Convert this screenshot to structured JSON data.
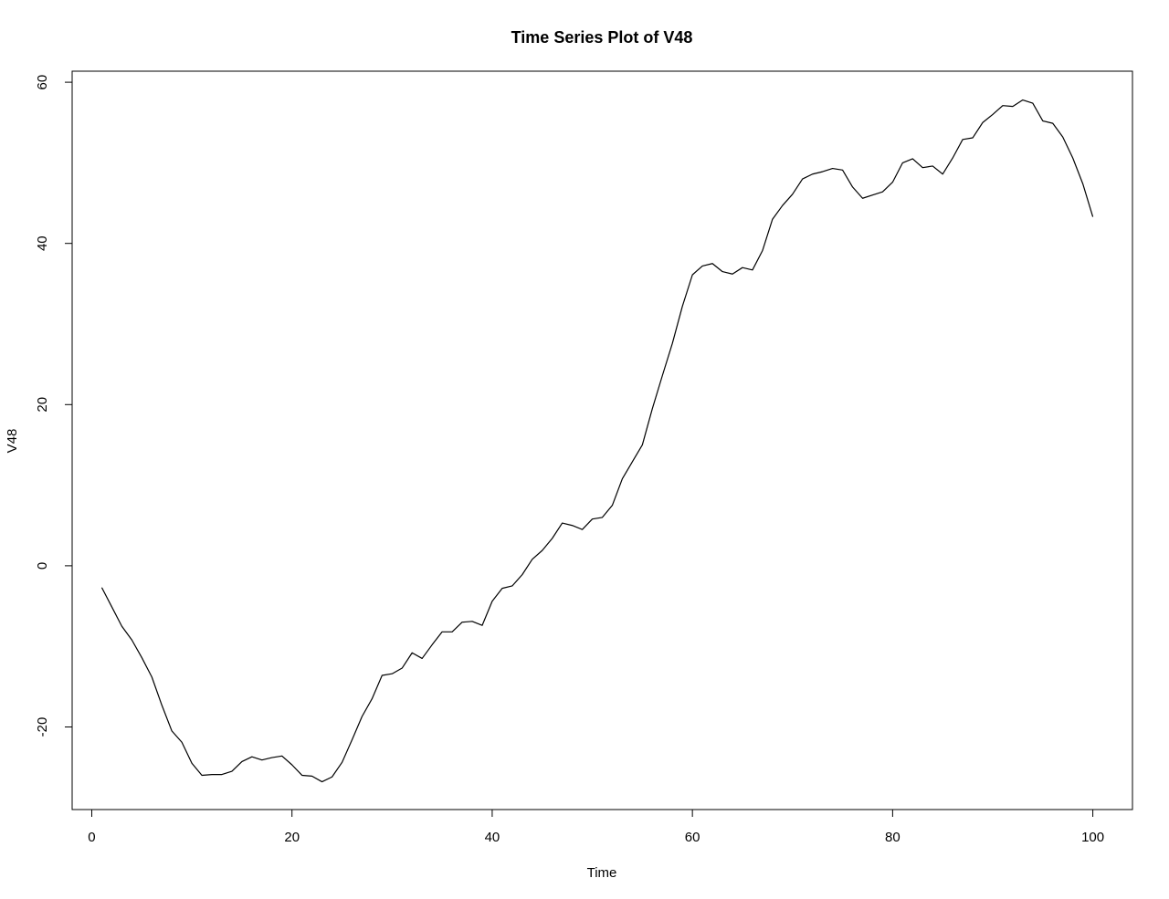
{
  "chart_data": {
    "type": "line",
    "title": "Time Series Plot of V48",
    "xlabel": "Time",
    "ylabel": "V48",
    "xlim": [
      -1.96,
      103.96
    ],
    "ylim": [
      -30.25,
      61.37
    ],
    "x_ticks": [
      0,
      20,
      40,
      60,
      80,
      100
    ],
    "x_tick_labels": [
      "0",
      "20",
      "40",
      "60",
      "80",
      "100"
    ],
    "y_ticks": [
      -20,
      0,
      20,
      40,
      60
    ],
    "y_tick_labels": [
      "-20",
      "0",
      "20",
      "40",
      "60"
    ],
    "grid": false,
    "legend": "none",
    "line_color": "#000000",
    "series": [
      {
        "x": [
          1,
          2,
          3,
          4,
          5,
          6,
          7,
          8,
          9,
          10,
          11,
          12,
          13,
          14,
          15,
          16,
          17,
          18,
          19,
          20,
          21,
          22,
          23,
          24,
          25,
          26,
          27,
          28,
          29,
          30,
          31,
          32,
          33,
          34,
          35,
          36,
          37,
          38,
          39,
          40,
          41,
          42,
          43,
          44,
          45,
          46,
          47,
          48,
          49,
          50,
          51,
          52,
          53,
          54,
          55,
          56,
          57,
          58,
          59,
          60,
          61,
          62,
          63,
          64,
          65,
          66,
          67,
          68,
          69,
          70,
          71,
          72,
          73,
          74,
          75,
          76,
          77,
          78,
          79,
          80,
          81,
          82,
          83,
          84,
          85,
          86,
          87,
          88,
          89,
          90,
          91,
          92,
          93,
          94,
          95,
          96,
          97,
          98,
          99,
          100
        ],
        "values": [
          -2.7,
          -5.1,
          -7.5,
          -9.2,
          -11.4,
          -13.8,
          -17.3,
          -20.5,
          -21.9,
          -24.5,
          -26.0,
          -25.9,
          -25.9,
          -25.5,
          -24.3,
          -23.7,
          -24.1,
          -23.8,
          -23.6,
          -24.7,
          -26.0,
          -26.1,
          -26.8,
          -26.2,
          -24.4,
          -21.6,
          -18.7,
          -16.5,
          -13.6,
          -13.4,
          -12.7,
          -10.8,
          -11.5,
          -9.8,
          -8.2,
          -8.2,
          -7.0,
          -6.9,
          -7.4,
          -4.4,
          -2.8,
          -2.5,
          -1.1,
          0.8,
          1.9,
          3.4,
          5.3,
          5.0,
          4.5,
          5.8,
          6.0,
          7.5,
          10.8,
          12.9,
          15.0,
          19.5,
          23.6,
          27.6,
          32.2,
          36.1,
          37.2,
          37.5,
          36.5,
          36.2,
          37.0,
          36.7,
          39.1,
          43.0,
          44.7,
          46.1,
          48.0,
          48.6,
          48.9,
          49.3,
          49.1,
          47.0,
          45.6,
          46.0,
          46.4,
          47.6,
          50.0,
          50.5,
          49.4,
          49.6,
          48.6,
          50.6,
          52.9,
          53.1,
          55.0,
          56.0,
          57.1,
          57.0,
          57.8,
          57.4,
          55.2,
          54.9,
          53.2,
          50.6,
          47.4,
          43.3
        ]
      }
    ]
  }
}
